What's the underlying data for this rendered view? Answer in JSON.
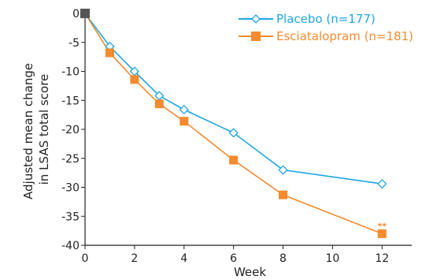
{
  "chart_data": {
    "type": "line",
    "xlabel": "Week",
    "ylabel_lines": [
      "Adjusted mean change",
      "in LSAS total score"
    ],
    "xlim": [
      0,
      13.2
    ],
    "ylim": [
      -40,
      0
    ],
    "x_ticks": [
      0,
      2,
      4,
      6,
      8,
      10,
      12
    ],
    "y_ticks": [
      0,
      -5,
      -10,
      -15,
      -20,
      -25,
      -30,
      -35,
      -40
    ],
    "grid": false,
    "legend_position": "top-right",
    "series": [
      {
        "name": "Placebo (n=177)",
        "color": "#1ea7e1",
        "marker": "open-diamond",
        "x": [
          0,
          1,
          2,
          3,
          4,
          6,
          8,
          12
        ],
        "y": [
          0,
          -5.7,
          -10.0,
          -14.2,
          -16.6,
          -20.6,
          -27.0,
          -29.4
        ]
      },
      {
        "name": "Esciatalopram (n=181)",
        "color": "#f58a2e",
        "marker": "filled-square",
        "x": [
          0,
          1,
          2,
          3,
          4,
          6,
          8,
          12
        ],
        "y": [
          0,
          -6.8,
          -11.4,
          -15.6,
          -18.6,
          -25.3,
          -31.3,
          -38.0
        ]
      }
    ],
    "annotations": [
      {
        "text": "**",
        "x": 12,
        "y": -36.7,
        "color": "#f58a2e"
      }
    ],
    "start_marker_color": "#555555"
  }
}
